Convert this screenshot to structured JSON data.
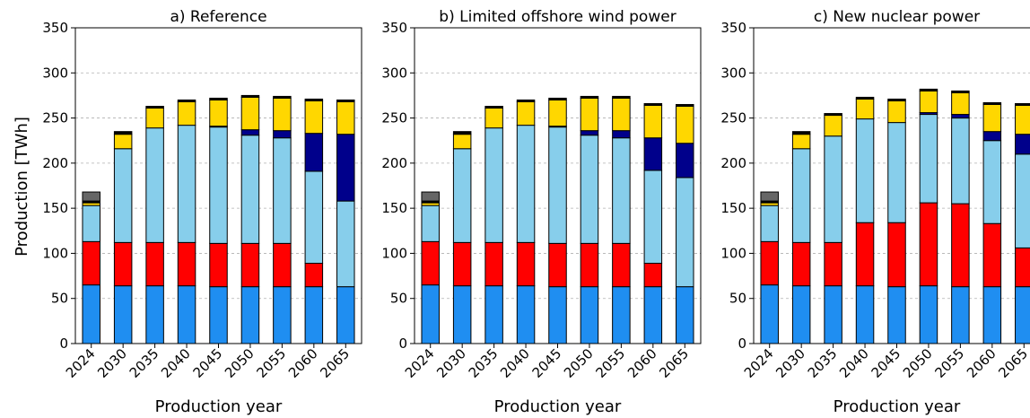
{
  "ylabel": "Production [TWh]",
  "colors": {
    "base": "#1f8ef1",
    "red": "#ff0000",
    "lightblue": "#87ceeb",
    "navy": "#00008b",
    "yellow": "#ffd700",
    "black": "#000000",
    "gray": "#666666"
  },
  "chart_data": [
    {
      "type": "bar",
      "stacked": true,
      "title": "a) Reference",
      "xlabel": "Production year",
      "ylabel": "Production [TWh]",
      "ylim": [
        0,
        350
      ],
      "yticks": [
        0,
        50,
        100,
        150,
        200,
        250,
        300,
        350
      ],
      "grid": true,
      "categories": [
        "2024",
        "2030",
        "2035",
        "2040",
        "2045",
        "2050",
        "2055",
        "2060",
        "2065"
      ],
      "series": [
        {
          "color": "#1f8ef1",
          "values": [
            65,
            64,
            64,
            64,
            63,
            63,
            63,
            63,
            63
          ]
        },
        {
          "color": "#ff0000",
          "values": [
            48,
            48,
            48,
            48,
            48,
            48,
            48,
            26,
            0
          ]
        },
        {
          "color": "#87ceeb",
          "values": [
            40,
            104,
            127,
            130,
            129,
            120,
            117,
            102,
            95
          ]
        },
        {
          "color": "#00008b",
          "values": [
            0,
            0,
            0,
            0,
            1,
            6,
            8,
            42,
            74
          ]
        },
        {
          "color": "#ffd700",
          "values": [
            3,
            16,
            22,
            26,
            29,
            36,
            36,
            36,
            36
          ]
        },
        {
          "color": "#000000",
          "values": [
            2,
            3,
            2,
            2,
            2,
            2,
            2,
            2,
            2
          ]
        },
        {
          "color": "#666666",
          "values": [
            10,
            0,
            0,
            0,
            0,
            0,
            0,
            0,
            0
          ]
        }
      ]
    },
    {
      "type": "bar",
      "stacked": true,
      "title": "b) Limited offshore wind power",
      "xlabel": "Production year",
      "ylabel": "",
      "ylim": [
        0,
        350
      ],
      "yticks": [
        0,
        50,
        100,
        150,
        200,
        250,
        300,
        350
      ],
      "grid": true,
      "categories": [
        "2024",
        "2030",
        "2035",
        "2040",
        "2045",
        "2050",
        "2055",
        "2060",
        "2065"
      ],
      "series": [
        {
          "color": "#1f8ef1",
          "values": [
            65,
            64,
            64,
            64,
            63,
            63,
            63,
            63,
            63
          ]
        },
        {
          "color": "#ff0000",
          "values": [
            48,
            48,
            48,
            48,
            48,
            48,
            48,
            26,
            0
          ]
        },
        {
          "color": "#87ceeb",
          "values": [
            40,
            104,
            127,
            130,
            129,
            120,
            117,
            103,
            121
          ]
        },
        {
          "color": "#00008b",
          "values": [
            0,
            0,
            0,
            0,
            1,
            5,
            8,
            36,
            38
          ]
        },
        {
          "color": "#ffd700",
          "values": [
            3,
            16,
            22,
            26,
            29,
            36,
            36,
            36,
            41
          ]
        },
        {
          "color": "#000000",
          "values": [
            2,
            3,
            2,
            2,
            2,
            2,
            2,
            2,
            2
          ]
        },
        {
          "color": "#666666",
          "values": [
            10,
            0,
            0,
            0,
            0,
            0,
            0,
            0,
            0
          ]
        }
      ]
    },
    {
      "type": "bar",
      "stacked": true,
      "title": "c) New nuclear power",
      "xlabel": "Production year",
      "ylabel": "",
      "ylim": [
        0,
        350
      ],
      "yticks": [
        0,
        50,
        100,
        150,
        200,
        250,
        300,
        350
      ],
      "grid": true,
      "categories": [
        "2024",
        "2030",
        "2035",
        "2040",
        "2045",
        "2050",
        "2055",
        "2060",
        "2065"
      ],
      "series": [
        {
          "color": "#1f8ef1",
          "values": [
            65,
            64,
            64,
            64,
            63,
            64,
            63,
            63,
            63
          ]
        },
        {
          "color": "#ff0000",
          "values": [
            48,
            48,
            48,
            70,
            71,
            92,
            92,
            70,
            43
          ]
        },
        {
          "color": "#87ceeb",
          "values": [
            40,
            104,
            118,
            115,
            111,
            98,
            95,
            92,
            104
          ]
        },
        {
          "color": "#00008b",
          "values": [
            0,
            0,
            0,
            0,
            0,
            2,
            4,
            10,
            22
          ]
        },
        {
          "color": "#ffd700",
          "values": [
            3,
            16,
            23,
            22,
            24,
            24,
            24,
            30,
            32
          ]
        },
        {
          "color": "#000000",
          "values": [
            2,
            3,
            2,
            2,
            2,
            2,
            2,
            2,
            2
          ]
        },
        {
          "color": "#666666",
          "values": [
            10,
            0,
            0,
            0,
            0,
            0,
            0,
            0,
            0
          ]
        }
      ]
    }
  ]
}
